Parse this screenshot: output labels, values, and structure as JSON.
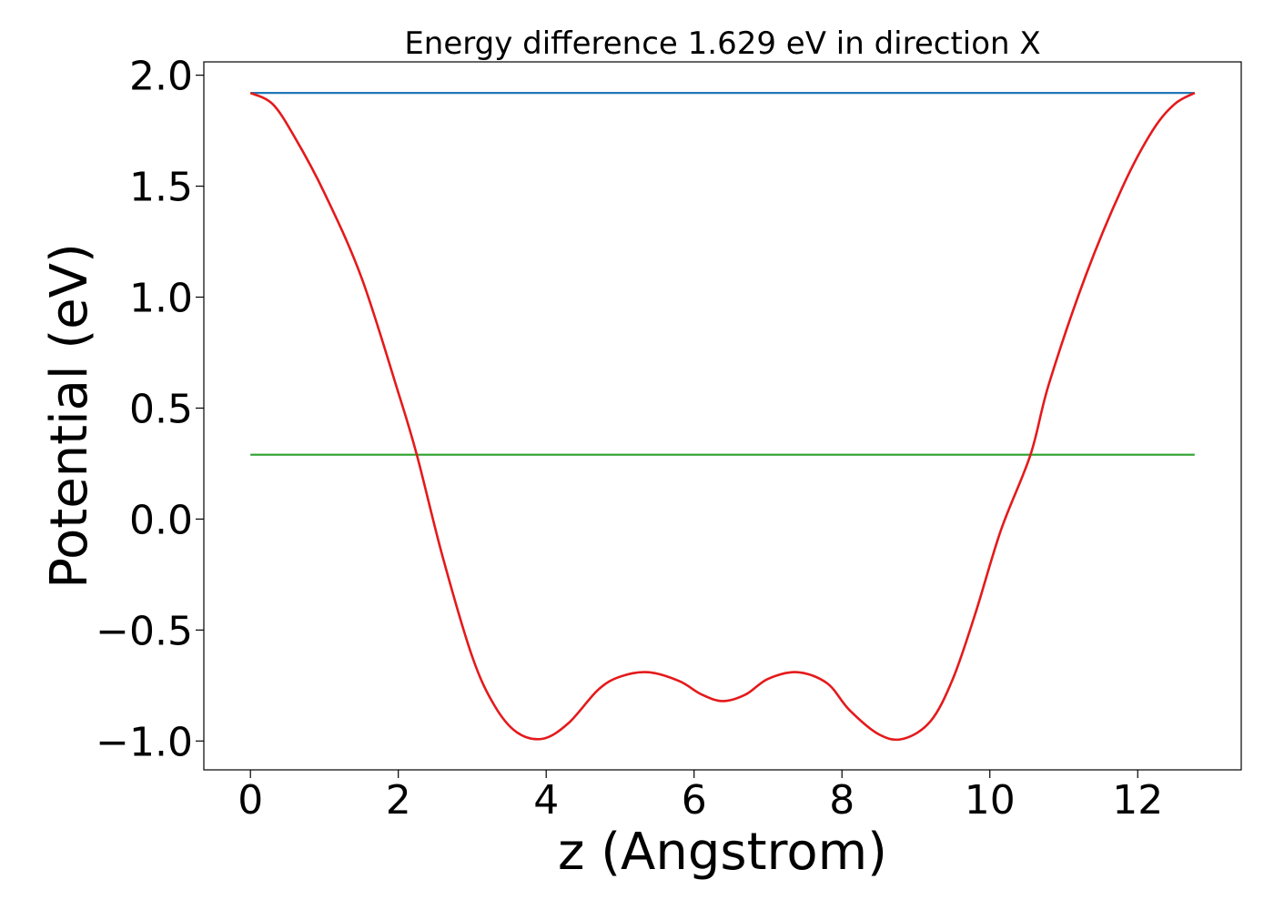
{
  "chart_data": {
    "type": "line",
    "title": "Energy difference 1.629 eV in direction X",
    "xlabel": "z (Angstrom)",
    "ylabel": "Potential (eV)",
    "xlim": [
      -0.63,
      13.4
    ],
    "ylim": [
      -1.13,
      2.06
    ],
    "xticks": [
      0,
      2,
      4,
      6,
      8,
      10,
      12
    ],
    "xtick_labels": [
      "0",
      "2",
      "4",
      "6",
      "8",
      "10",
      "12"
    ],
    "yticks": [
      -1.0,
      -0.5,
      0.0,
      0.5,
      1.0,
      1.5,
      2.0
    ],
    "ytick_labels": [
      "−1.0",
      "−0.5",
      "0.0",
      "0.5",
      "1.0",
      "1.5",
      "2.0"
    ],
    "grid": false,
    "series": [
      {
        "color": "#1f77b4",
        "x": [
          0,
          12.77
        ],
        "y": [
          1.92,
          1.92
        ]
      },
      {
        "color": "#2ca02c",
        "x": [
          0,
          12.77
        ],
        "y": [
          0.29,
          0.29
        ]
      },
      {
        "color": "#e41a1c",
        "x": [
          0,
          0.3,
          0.6,
          1.0,
          1.5,
          2.0,
          2.25,
          2.6,
          3.0,
          3.3,
          3.6,
          3.95,
          4.3,
          4.7,
          5.0,
          5.38,
          5.8,
          6.1,
          6.39,
          6.7,
          7.0,
          7.4,
          7.8,
          8.1,
          8.5,
          8.83,
          9.2,
          9.5,
          9.8,
          10.15,
          10.55,
          10.8,
          11.3,
          11.8,
          12.2,
          12.5,
          12.77
        ],
        "y": [
          1.92,
          1.87,
          1.72,
          1.47,
          1.09,
          0.57,
          0.29,
          -0.17,
          -0.62,
          -0.84,
          -0.96,
          -0.99,
          -0.92,
          -0.77,
          -0.71,
          -0.69,
          -0.73,
          -0.79,
          -0.82,
          -0.79,
          -0.72,
          -0.69,
          -0.74,
          -0.86,
          -0.97,
          -0.99,
          -0.91,
          -0.72,
          -0.43,
          -0.05,
          0.29,
          0.61,
          1.1,
          1.5,
          1.75,
          1.87,
          1.92
        ]
      }
    ]
  }
}
